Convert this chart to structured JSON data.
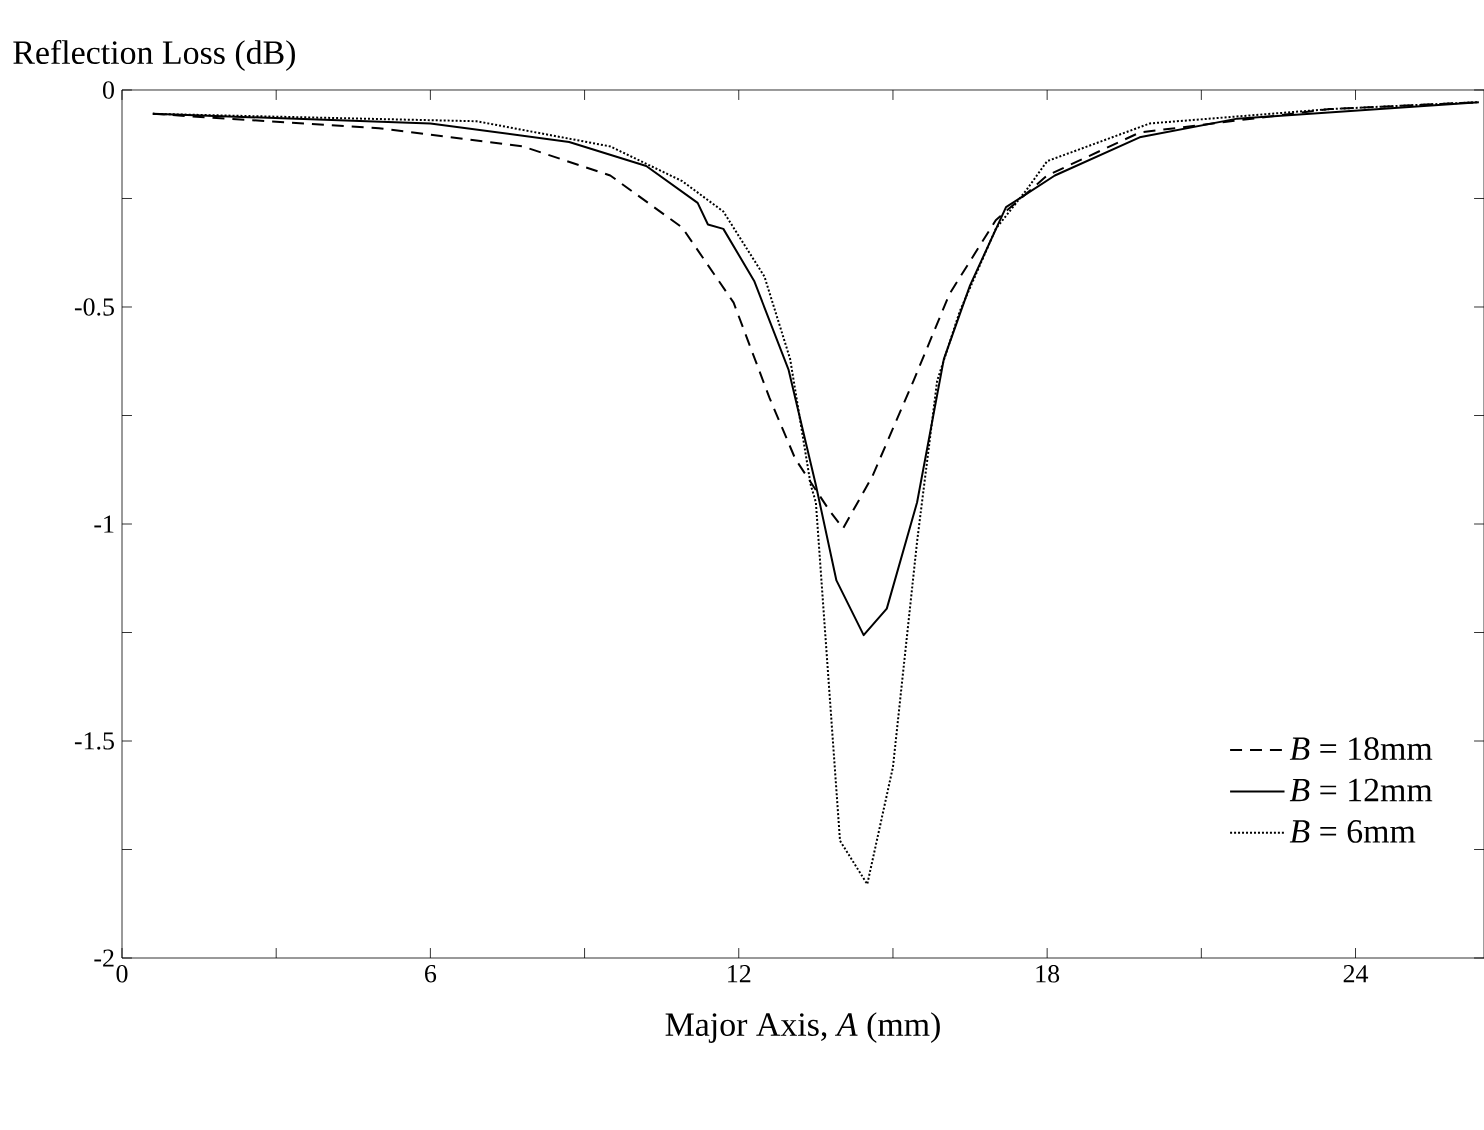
{
  "chart_data": {
    "type": "line",
    "ylabel": "Reflection Loss (dB)",
    "xlabel": "Major Axis, *A* (mm)",
    "xlim": [
      0,
      26.5
    ],
    "ylim": [
      -2,
      0
    ],
    "xticks": [
      0,
      {
        "value": 3,
        "label": null
      },
      6,
      {
        "value": 9,
        "label": null
      },
      12,
      {
        "value": 15,
        "label": null
      },
      18,
      {
        "value": 21,
        "label": null
      },
      24
    ],
    "yticks": [
      -2,
      {
        "value": -1.75,
        "label": null
      },
      -1.5,
      {
        "value": -1.25,
        "label": null
      },
      -1,
      {
        "value": -0.75,
        "label": null
      },
      -0.5,
      {
        "value": -0.25,
        "label": null
      },
      0
    ],
    "legend": "right",
    "grid": false,
    "marker": "none",
    "series": [
      {
        "name": "*B* = 18mm",
        "color": "#000000",
        "line_style": "dashed",
        "x": [
          0.6,
          5.0,
          7.8,
          9.5,
          10.9,
          11.9,
          12.6,
          13.1,
          13.77,
          14.03,
          14.6,
          15.4,
          16.1,
          17.0,
          18.0,
          19.8,
          23.5,
          26.4
        ],
        "values": [
          -0.055,
          -0.088,
          -0.13,
          -0.197,
          -0.317,
          -0.49,
          -0.71,
          -0.85,
          -0.97,
          -1.01,
          -0.89,
          -0.67,
          -0.47,
          -0.3,
          -0.197,
          -0.098,
          -0.044,
          -0.028
        ]
      },
      {
        "name": "*B* = 12mm",
        "color": "#000000",
        "line_style": "solid",
        "x": [
          0.6,
          6.0,
          8.7,
          10.2,
          11.2,
          11.4,
          11.7,
          12.3,
          12.97,
          13.5,
          13.9,
          14.43,
          14.88,
          15.47,
          15.99,
          16.5,
          17.2,
          18.15,
          19.8,
          21.7,
          26.4
        ],
        "values": [
          -0.055,
          -0.077,
          -0.12,
          -0.175,
          -0.26,
          -0.31,
          -0.32,
          -0.44,
          -0.645,
          -0.91,
          -1.13,
          -1.256,
          -1.195,
          -0.95,
          -0.62,
          -0.45,
          -0.27,
          -0.197,
          -0.109,
          -0.066,
          -0.028
        ]
      },
      {
        "name": "*B* = 6mm",
        "color": "#000000",
        "line_style": "dotted",
        "x": [
          0.6,
          6.9,
          9.5,
          10.9,
          11.7,
          12.5,
          13.0,
          13.4,
          13.5,
          13.97,
          14.5,
          15.0,
          15.47,
          15.86,
          16.3,
          17.0,
          17.6,
          18.0,
          20.0,
          23.5,
          26.4
        ],
        "values": [
          -0.055,
          -0.072,
          -0.13,
          -0.21,
          -0.28,
          -0.43,
          -0.62,
          -0.91,
          -0.95,
          -1.73,
          -1.83,
          -1.56,
          -1.04,
          -0.67,
          -0.51,
          -0.32,
          -0.23,
          -0.164,
          -0.077,
          -0.044,
          -0.028
        ]
      }
    ]
  }
}
